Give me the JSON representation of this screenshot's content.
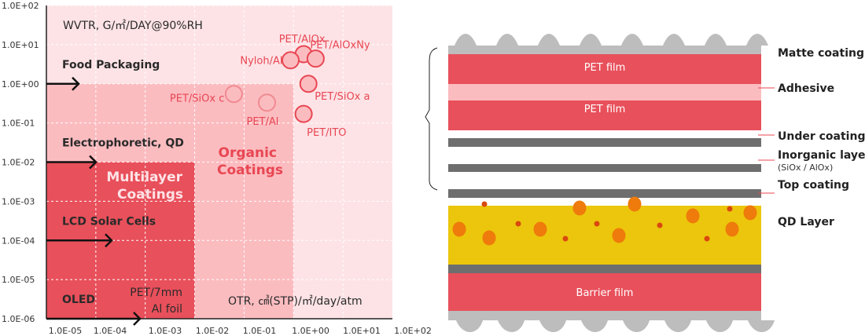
{
  "chart_data": {
    "type": "scatter",
    "y_title": "WVTR, G/㎡/DAY@90%RH",
    "x_title": "OTR, ㎤(STP)/㎡/day/atm",
    "x_scale": "log",
    "y_scale": "log",
    "xlim": [
      1e-05,
      100
    ],
    "ylim": [
      1e-06,
      100
    ],
    "x_ticks": [
      "1.0E-05",
      "1.0E-04",
      "1.0E-03",
      "1.0E-02",
      "1.0E-01",
      "1.0E+00",
      "1.0E+01",
      "1.0E+02"
    ],
    "y_ticks": [
      "1.0E+02",
      "1.0E+01",
      "1.0E+00",
      "1.0E-01",
      "1.0E-02",
      "1.0E-03",
      "1.0E-04",
      "1.0E-05",
      "1.0E-06"
    ],
    "grid": true,
    "regions": [
      {
        "name": "",
        "otr_max": 100,
        "wvtr_max": 100,
        "color": "#fde3e6"
      },
      {
        "name": "Organic Coatings",
        "line1": "Organic",
        "line2": "Coatings",
        "otr_max": 1,
        "wvtr_max": 1,
        "color": "#fbbcc0",
        "text_color": "#e84652"
      },
      {
        "name": "Multilayer Coatings",
        "line1": "Multilayer",
        "line2": "Coatings",
        "otr_max": 0.01,
        "wvtr_max": 0.01,
        "color": "#e8505b",
        "text_color": "#fde3e6"
      }
    ],
    "applications": [
      {
        "label": "Food Packaging",
        "wvtr": 1
      },
      {
        "label": "Electrophoretic, QD",
        "wvtr": 0.01
      },
      {
        "label": "LCD Solar Cells",
        "wvtr": 0.0001
      },
      {
        "label": "OLED",
        "wvtr": 1e-06
      }
    ],
    "points": [
      {
        "label": "PET/AlOx",
        "otr": 1.6,
        "wvtr": 5.7,
        "style": "solid"
      },
      {
        "label": "Nyloh/Al",
        "otr": 0.87,
        "wvtr": 4.0,
        "style": "solid"
      },
      {
        "label": "PET/AlOxNy",
        "otr": 2.8,
        "wvtr": 4.4,
        "style": "solid"
      },
      {
        "label": "PET/SiOx a",
        "otr": 2.0,
        "wvtr": 1.0,
        "style": "solid"
      },
      {
        "label": "PET/ITO",
        "otr": 1.6,
        "wvtr": 0.17,
        "style": "solid"
      },
      {
        "label": "PET/SiOx c",
        "otr": 0.062,
        "wvtr": 0.55,
        "style": "light"
      },
      {
        "label": "PET/Al",
        "otr": 0.29,
        "wvtr": 0.33,
        "style": "light"
      }
    ],
    "annotation": {
      "line1": "PET/7mm",
      "line2": "Al foil"
    }
  },
  "diagram": {
    "layers": {
      "pet_film_1": "PET film",
      "pet_film_2": "PET film",
      "barrier_film": "Barrier film"
    },
    "labels": {
      "matte": "Matte coating",
      "adhesive": "Adhesive",
      "under": "Under coating",
      "inorganic": "Inorganic layer",
      "inorganic_sub": "(SiOx / AlOx)",
      "top": "Top coating",
      "qd": "QD Layer"
    },
    "colors": {
      "red": "#e8505b",
      "pink": "#fbbcc0",
      "gray": "#6e6e6e",
      "matte": "#bdbdbd",
      "qd": "#ecc60c",
      "dot": "#ee7b0b",
      "small_dot": "#d9480f"
    }
  }
}
